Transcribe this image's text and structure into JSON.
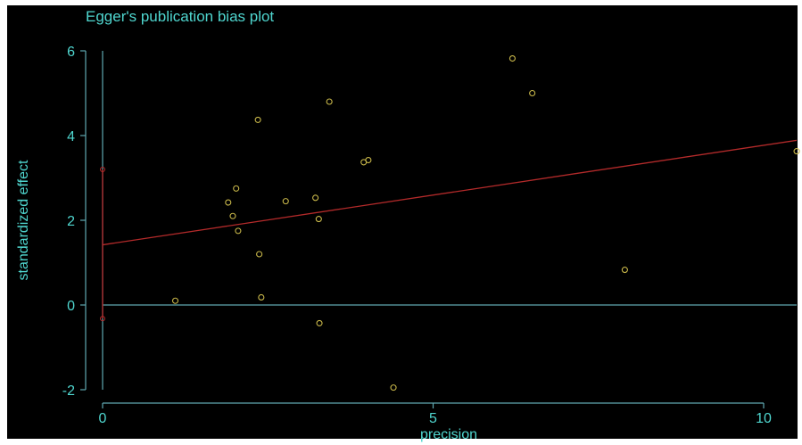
{
  "chart_data": {
    "type": "scatter",
    "title": "Egger's publication bias plot",
    "xlabel": "precision",
    "ylabel": "standardized effect",
    "xlim": [
      -0.5,
      10.5
    ],
    "ylim": [
      -2.2,
      6.2
    ],
    "x_ticks": [
      0,
      5,
      10
    ],
    "y_ticks": [
      -2,
      0,
      2,
      4,
      6
    ],
    "grid": false,
    "points": [
      {
        "x": 1.1,
        "y": 0.1
      },
      {
        "x": 1.9,
        "y": 2.42
      },
      {
        "x": 1.97,
        "y": 2.1
      },
      {
        "x": 2.02,
        "y": 2.75
      },
      {
        "x": 2.05,
        "y": 1.75
      },
      {
        "x": 2.35,
        "y": 4.37
      },
      {
        "x": 2.37,
        "y": 1.2
      },
      {
        "x": 2.4,
        "y": 0.18
      },
      {
        "x": 2.77,
        "y": 2.45
      },
      {
        "x": 3.22,
        "y": 2.53
      },
      {
        "x": 3.27,
        "y": 2.03
      },
      {
        "x": 3.28,
        "y": -0.43
      },
      {
        "x": 3.43,
        "y": 4.8
      },
      {
        "x": 3.95,
        "y": 3.37
      },
      {
        "x": 4.02,
        "y": 3.42
      },
      {
        "x": 4.4,
        "y": -1.95
      },
      {
        "x": 6.2,
        "y": 5.82
      },
      {
        "x": 6.5,
        "y": 5.0
      },
      {
        "x": 7.9,
        "y": 0.83
      },
      {
        "x": 10.5,
        "y": 3.63
      }
    ],
    "regression_line": {
      "intercept": 1.42,
      "slope": 0.235
    },
    "intercept_ci": {
      "x": 0,
      "lower": -0.32,
      "upper": 3.2
    },
    "reference_line_y": 0,
    "colors": {
      "text": "#4fd6cf",
      "axis": "#5fa8b0",
      "points": "#c9b84a",
      "regression": "#b32a2a",
      "background": "#000000"
    }
  }
}
